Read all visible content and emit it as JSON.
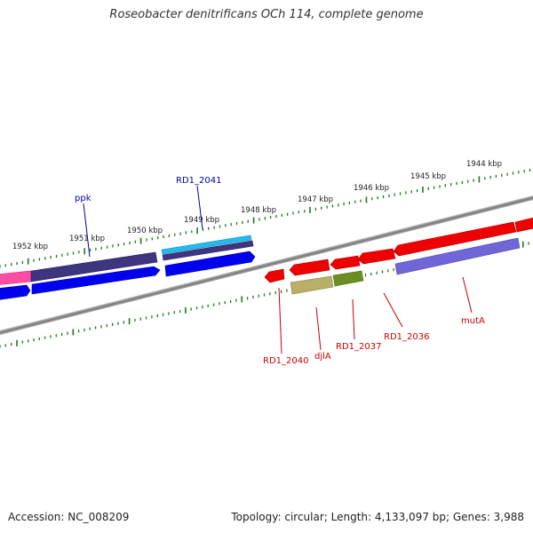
{
  "title": "Roseobacter denitrificans OCh 114, complete genome",
  "footer": {
    "accession": "Accession: NC_008209",
    "summary": "Topology: circular; Length: 4,133,097 bp; Genes: 3,988"
  },
  "scale": {
    "labels": [
      "1952 kbp",
      "1951 kbp",
      "1950 kbp",
      "1949 kbp",
      "1948 kbp",
      "1947 kbp",
      "1946 kbp",
      "1945 kbp",
      "1944 kbp"
    ]
  },
  "gene_labels": {
    "ppk": "ppk",
    "rd1_2041": "RD1_2041",
    "rd1_2040": "RD1_2040",
    "djla": "djlA",
    "rd1_2037": "RD1_2037",
    "rd1_2036": "RD1_2036",
    "muta": "mutA"
  },
  "colors": {
    "tick": "#1f7a1f",
    "backbone": "#8a8a8a",
    "forward_label": "#0000aa",
    "reverse_label": "#cc0000",
    "pink": "#ff4da6",
    "dark_purple": "#3d3580",
    "blue": "#0000ee",
    "cyan": "#22bbee",
    "red": "#ee0000",
    "khaki": "#b8b068",
    "olive": "#6b8e23",
    "lavender": "#6f66d8"
  }
}
